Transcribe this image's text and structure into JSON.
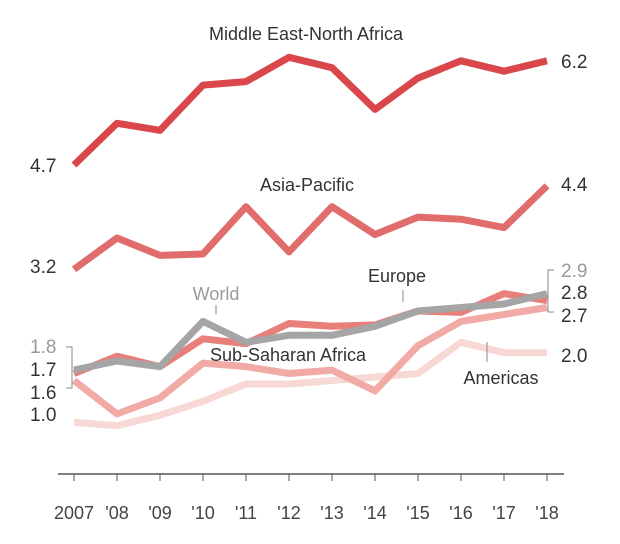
{
  "chart_data": {
    "type": "line",
    "x": [
      "2007",
      "'08",
      "'09",
      "'10",
      "'11",
      "'12",
      "'13",
      "'14",
      "'15",
      "'16",
      "'17",
      "'18"
    ],
    "ylim": [
      0.6,
      6.7
    ],
    "grid": false,
    "legend": "inline labels",
    "series": [
      {
        "name": "Middle East-North Africa",
        "color": "#d9474b",
        "values": [
          4.7,
          5.3,
          5.2,
          5.85,
          5.9,
          6.25,
          6.1,
          5.5,
          5.95,
          6.2,
          6.05,
          6.2
        ]
      },
      {
        "name": "Asia-Pacific",
        "color": "#e06c6c",
        "values": [
          3.2,
          3.65,
          3.4,
          3.42,
          4.1,
          3.45,
          4.1,
          3.7,
          3.95,
          3.92,
          3.8,
          4.4
        ]
      },
      {
        "name": "World",
        "color": "#a5a5a5",
        "values": [
          1.75,
          1.88,
          1.8,
          2.45,
          2.15,
          2.25,
          2.25,
          2.38,
          2.6,
          2.65,
          2.7,
          2.85
        ]
      },
      {
        "name": "Europe",
        "color": "#e97f7a",
        "values": [
          1.7,
          1.95,
          1.8,
          2.2,
          2.13,
          2.42,
          2.38,
          2.4,
          2.6,
          2.58,
          2.85,
          2.75
        ]
      },
      {
        "name": "Sub-Saharan Africa",
        "color": "#f1aaa5",
        "values": [
          1.6,
          1.12,
          1.35,
          1.85,
          1.8,
          1.7,
          1.75,
          1.45,
          2.1,
          2.45,
          2.55,
          2.65
        ]
      },
      {
        "name": "Americas",
        "color": "#f8d8d4",
        "values": [
          1.0,
          0.95,
          1.1,
          1.3,
          1.55,
          1.55,
          1.6,
          1.65,
          1.7,
          2.15,
          2.0,
          2.0
        ]
      }
    ],
    "series_labels": {
      "mena": "Middle East-North Africa",
      "asia": "Asia-Pacific",
      "world": "World",
      "europe": "Europe",
      "ssa": "Sub-Saharan Africa",
      "americas": "Americas"
    },
    "start_labels": {
      "mena": "4.7",
      "asia": "3.2",
      "world": "1.8",
      "europe": "1.7",
      "ssa": "1.6",
      "americas": "1.0"
    },
    "end_labels": {
      "mena": "6.2",
      "asia": "4.4",
      "world": "2.9",
      "europe": "2.8",
      "ssa": "2.7",
      "americas": "2.0"
    }
  }
}
